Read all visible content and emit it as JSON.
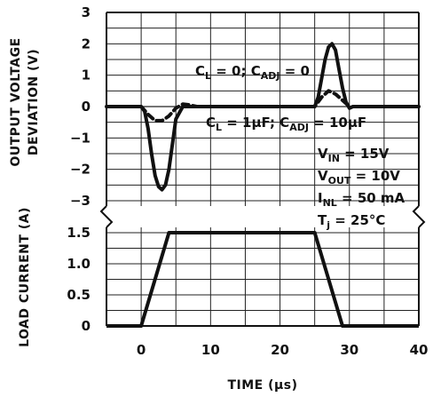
{
  "chart_data": [
    {
      "type": "line",
      "panel": "top",
      "ylabel_line1": "OUTPUT VOLTAGE",
      "ylabel_line2": "DEVIATION (V)",
      "xlim": [
        -5,
        40
      ],
      "ylim": [
        -3,
        3
      ],
      "yticks": [
        {
          "v": 3,
          "label": "3"
        },
        {
          "v": 2,
          "label": "2"
        },
        {
          "v": 1,
          "label": "1"
        },
        {
          "v": 0,
          "label": "0"
        },
        {
          "v": -1,
          "label": "−1"
        },
        {
          "v": -2,
          "label": "−2"
        },
        {
          "v": -3,
          "label": "−3"
        }
      ],
      "series": [
        {
          "name": "C_L = 0; C_ADJ = 0",
          "style": "solid",
          "x": [
            -5,
            0,
            0.5,
            1,
            1.5,
            2,
            2.5,
            3,
            3.5,
            4,
            4.5,
            5,
            6,
            7,
            10,
            20,
            24.5,
            25,
            25.5,
            26,
            26.5,
            27,
            27.5,
            28,
            28.5,
            29,
            29.5,
            30,
            30.5,
            40
          ],
          "y": [
            0,
            0,
            -0.15,
            -0.7,
            -1.5,
            -2.2,
            -2.55,
            -2.65,
            -2.5,
            -2.0,
            -1.2,
            -0.4,
            0,
            0,
            0,
            0,
            0,
            0,
            0.3,
            0.9,
            1.5,
            1.9,
            2.0,
            1.8,
            1.2,
            0.6,
            0.15,
            -0.05,
            0,
            0
          ]
        },
        {
          "name": "C_L = 1μF; C_ADJ = 10μF",
          "style": "dashed",
          "x": [
            0,
            1,
            2,
            3,
            4,
            5,
            6,
            7,
            8,
            25,
            26,
            27,
            28,
            29,
            30
          ],
          "y": [
            0,
            -0.25,
            -0.45,
            -0.45,
            -0.3,
            -0.05,
            0.08,
            0.05,
            0,
            0,
            0.3,
            0.5,
            0.4,
            0.2,
            0
          ]
        }
      ],
      "annotations": {
        "a1_main": "C",
        "a1_sub1": "L",
        "a1_mid": " = 0; C",
        "a1_sub2": "ADJ",
        "a1_end": " = 0",
        "a2_main": "C",
        "a2_sub1": "L",
        "a2_mid": " = 1μF; C",
        "a2_sub2": "ADJ",
        "a2_end": " = 10μF"
      },
      "conditions": {
        "vin_main": "V",
        "vin_sub": "IN",
        "vin_val": " = 15V",
        "vout_main": "V",
        "vout_sub": "OUT",
        "vout_val": " = 10V",
        "inl_main": "I",
        "inl_sub": "NL",
        "inl_val": " = 50 mA",
        "tj_main": "T",
        "tj_sub": "j",
        "tj_val": " = 25°C"
      }
    },
    {
      "type": "line",
      "panel": "bottom",
      "ylabel": "LOAD CURRENT (A)",
      "xlabel": "TIME (μs)",
      "xlim": [
        -5,
        40
      ],
      "ylim": [
        0,
        1.5
      ],
      "yticks": [
        {
          "v": 1.5,
          "label": "1.5"
        },
        {
          "v": 1.0,
          "label": "1.0"
        },
        {
          "v": 0.5,
          "label": "0.5"
        },
        {
          "v": 0,
          "label": "0"
        }
      ],
      "xticks": [
        {
          "v": 0,
          "label": "0"
        },
        {
          "v": 10,
          "label": "10"
        },
        {
          "v": 20,
          "label": "20"
        },
        {
          "v": 30,
          "label": "30"
        },
        {
          "v": 40,
          "label": "40"
        }
      ],
      "series": [
        {
          "name": "load current",
          "style": "solid",
          "x": [
            -5,
            0,
            4,
            25,
            29,
            40
          ],
          "y": [
            0,
            0,
            1.5,
            1.5,
            0,
            0
          ]
        }
      ]
    }
  ]
}
